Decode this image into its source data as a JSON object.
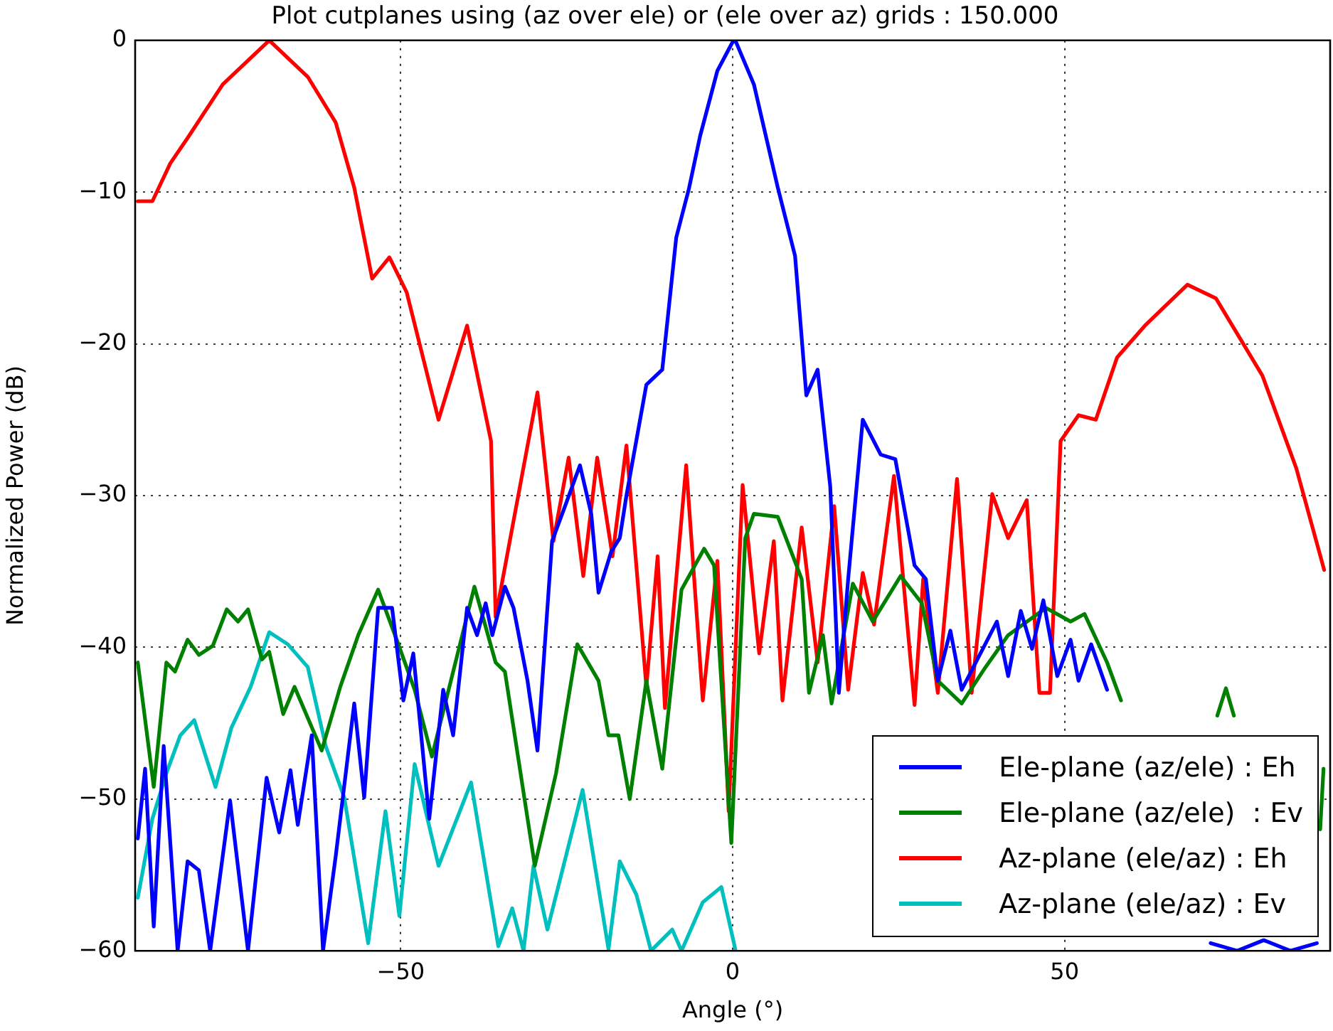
{
  "chart_data": {
    "type": "line",
    "title": "Plot cutplanes using (az over ele) or (ele over az) grids : 150.000",
    "xlabel": "Angle (°)",
    "ylabel": "Normalized Power (dB)",
    "xlim": [
      -90,
      90
    ],
    "ylim": [
      -60,
      0
    ],
    "xticks": [
      {
        "value": -50,
        "label": "−50"
      },
      0,
      50
    ],
    "yticks": [
      {
        "value": -60,
        "label": "−60"
      },
      {
        "value": -50,
        "label": "−50"
      },
      {
        "value": -40,
        "label": "−40"
      },
      {
        "value": -30,
        "label": "−30"
      },
      {
        "value": -20,
        "label": "−20"
      },
      {
        "value": -10,
        "label": "−10"
      },
      0
    ],
    "grid": true,
    "legend": "bottom right",
    "marker": "none",
    "line_style": "solid",
    "series": [
      {
        "name": "Ele-plane (az/ele) : Eh",
        "color": "#0000ff",
        "x": [
          -89.6,
          -88.5,
          -87.2,
          -85.7,
          -83.6,
          -82.1,
          -80.4,
          -78.7,
          -75.7,
          -73,
          -70.2,
          -68.3,
          -66.6,
          -65.5,
          -63.4,
          -61.7,
          -59.8,
          -57,
          -55.5,
          -53.4,
          -51.3,
          -49.6,
          -48.1,
          -45.7,
          -43.6,
          -42.1,
          -40,
          -38.5,
          -37.2,
          -36.2,
          -34.3,
          -33,
          -30.9,
          -29.4,
          -27.2,
          -25.5,
          -23,
          -21.3,
          -20.2,
          -18.3,
          -17,
          -16,
          -13,
          -10.6,
          -8.5,
          -6.6,
          -4.9,
          -2.3,
          0,
          0.4,
          3.2,
          6.8,
          9.4,
          11.1,
          12.8,
          14.7,
          16,
          17.4,
          19.6,
          22.3,
          24.5,
          27.4,
          29.1,
          30.9,
          32.8,
          34.5,
          39.8,
          41.5,
          43.4,
          45.1,
          46.8,
          48.9,
          50.9,
          52.1,
          54,
          56.4,
          57.5,
          72,
          76,
          80,
          84,
          88
        ],
        "values": [
          -52.6,
          -48,
          -58.4,
          -46.5,
          -60,
          -54.1,
          -54.7,
          -60,
          -50.1,
          -60,
          -48.6,
          -52.2,
          -48.1,
          -51.7,
          -45.8,
          -60,
          -53.8,
          -43.7,
          -49.9,
          -37.4,
          -37.4,
          -43.5,
          -40.4,
          -51.3,
          -42.8,
          -45.8,
          -37.4,
          -39.2,
          -37.1,
          -39.2,
          -36,
          -37.4,
          -42.2,
          -46.8,
          -33,
          -31,
          -28,
          -31.2,
          -36.4,
          -33.7,
          -32.8,
          -30,
          -22.7,
          -21.7,
          -13,
          -9.8,
          -6.3,
          -2,
          -0.1,
          0,
          -2.9,
          -9.7,
          -14.2,
          -23.4,
          -21.7,
          -29.4,
          -43,
          -35.5,
          -25,
          -27.3,
          -27.6,
          -34.6,
          -35.5,
          -42.2,
          -38.9,
          -42.8,
          -38.3,
          -41.9,
          -37.6,
          -40.1,
          -36.9,
          -41.9,
          -39.5,
          -42.2,
          -39.8,
          -42.8,
          null,
          -59.5,
          -60,
          -59.3,
          -60,
          -59.5
        ]
      },
      {
        "name": "Ele-plane (az/ele)  : Ev",
        "color": "#008000",
        "x": [
          -89.6,
          -87.2,
          -85.3,
          -84,
          -82.1,
          -80.4,
          -78.3,
          -76.2,
          -74.5,
          -73,
          -70.9,
          -69.8,
          -67.7,
          -66,
          -61.9,
          -59.1,
          -56.4,
          -53.4,
          -50.6,
          -47.9,
          -45.3,
          -42.1,
          -38.9,
          -35.7,
          -34.3,
          -29.8,
          -26.6,
          -23.4,
          -20.2,
          -18.7,
          -17.2,
          -15.5,
          -13,
          -10.6,
          -7.7,
          -4.3,
          -2.8,
          -0.2,
          1.9,
          3.2,
          6.8,
          10.4,
          11.5,
          13.6,
          14.9,
          18.1,
          21.1,
          25.3,
          28.5,
          30.9,
          34.5,
          38.1,
          41.5,
          47.2,
          50.9,
          53,
          56.4,
          58.5,
          62,
          73,
          74.3,
          75.5,
          80,
          88.5,
          89
        ],
        "values": [
          -41,
          -49.2,
          -41,
          -41.6,
          -39.5,
          -40.5,
          -39.9,
          -37.5,
          -38.3,
          -37.5,
          -40.8,
          -40.3,
          -44.4,
          -42.6,
          -46.8,
          -42.6,
          -39.2,
          -36.2,
          -39.5,
          -42.8,
          -47.2,
          -41.6,
          -36,
          -41,
          -41.6,
          -54.4,
          -48.3,
          -39.8,
          -42.2,
          -45.8,
          -45.8,
          -50,
          -42.2,
          -48,
          -36.2,
          -33.5,
          -34.6,
          -52.9,
          -32.8,
          -31.2,
          -31.4,
          -35.5,
          -43,
          -39.2,
          -43.7,
          -35.8,
          -38.3,
          -35.3,
          -37.1,
          -42.2,
          -43.7,
          -41.3,
          -39.2,
          -37.4,
          -38.3,
          -37.8,
          -41,
          -43.5,
          null,
          -44.5,
          -42.7,
          -44.5,
          null,
          -52,
          -48
        ]
      },
      {
        "name": "Az-plane (ele/az) : Eh",
        "color": "#ff0000",
        "x": [
          -89.6,
          -87.4,
          -84.7,
          -81.9,
          -76.8,
          -69.8,
          -64,
          -59.8,
          -57,
          -54.3,
          -51.7,
          -49.1,
          -44.3,
          -40,
          -36.4,
          -35.7,
          -29.4,
          -27,
          -24.7,
          -22.5,
          -20.4,
          -18.1,
          -16,
          -13,
          -11.3,
          -10.2,
          -7,
          -4.5,
          -2.3,
          -0.6,
          1.5,
          4,
          6.2,
          7.5,
          10.4,
          12.8,
          15.3,
          17.4,
          19.6,
          21.3,
          24.3,
          27.4,
          28.7,
          30.9,
          33.8,
          36,
          39.1,
          41.5,
          44.3,
          46.2,
          47.8,
          49.4,
          52.1,
          54.7,
          57.9,
          62.1,
          68.5,
          72.8,
          79.8,
          84.9,
          89.1
        ],
        "values": [
          -10.6,
          -10.6,
          -8.1,
          -6.3,
          -2.9,
          0,
          -2.4,
          -5.4,
          -9.7,
          -15.7,
          -14.3,
          -16.6,
          -25,
          -18.8,
          -26.4,
          -38,
          -23.2,
          -33,
          -27.5,
          -35.3,
          -27.5,
          -34,
          -26.7,
          -42.6,
          -34,
          -44,
          -28,
          -43.5,
          -34.3,
          -50.8,
          -29.3,
          -40.4,
          -33,
          -43.5,
          -32.1,
          -41,
          -30.7,
          -42.8,
          -35.1,
          -38.5,
          -28.7,
          -43.8,
          -35.5,
          -43,
          -28.9,
          -43,
          -29.9,
          -32.8,
          -30.3,
          -43,
          -43,
          -26.4,
          -24.7,
          -25,
          -20.9,
          -18.8,
          -16.1,
          -17,
          -22.1,
          -28.2,
          -34.9
        ]
      },
      {
        "name": "Az-plane (ele/az) : Ev",
        "color": "#00bfbf",
        "x": [
          -89.6,
          -87.4,
          -85.3,
          -83.2,
          -81.1,
          -77.9,
          -75.5,
          -72.6,
          -69.8,
          -67,
          -64,
          -61.3,
          -58.5,
          -54.9,
          -52.3,
          -50.2,
          -47.9,
          -44.3,
          -39.4,
          -35.3,
          -33.2,
          -31.5,
          -30,
          -27.9,
          -22.6,
          -18.7,
          -17,
          -14.5,
          -12.3,
          -9.1,
          -7.7,
          -4.5,
          -1.7,
          0.4
        ],
        "values": [
          -56.5,
          -51.3,
          -48.3,
          -45.8,
          -44.8,
          -49.2,
          -45.3,
          -42.6,
          -39,
          -39.8,
          -41.3,
          -46.5,
          -49.9,
          -59.5,
          -50.8,
          -57.7,
          -47.7,
          -54.4,
          -48.9,
          -59.7,
          -57.2,
          -60,
          -54.4,
          -58.6,
          -49.4,
          -59.9,
          -54.1,
          -56.3,
          -60,
          -58.6,
          -60,
          -56.8,
          -55.8,
          -59.9
        ]
      }
    ]
  }
}
